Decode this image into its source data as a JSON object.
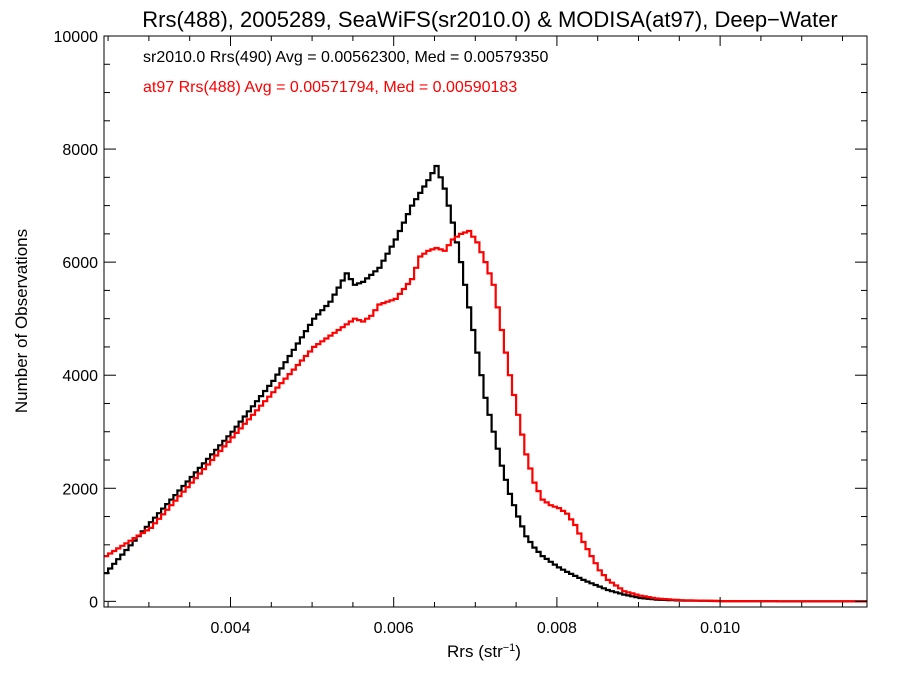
{
  "chart_data": {
    "type": "line",
    "title": "Rrs(488), 2005289, SeaWiFS(sr2010.0) & MODISA(at97), Deep−Water",
    "xlabel_main": "Rrs (str",
    "xlabel_sup": "−1",
    "xlabel_close": ")",
    "ylabel": "Number of Observations",
    "xlim": [
      0.00245,
      0.0118
    ],
    "ylim": [
      -100,
      10000
    ],
    "x_ticks": [
      0.004,
      0.006,
      0.008,
      0.01
    ],
    "x_tick_labels": [
      "0.004",
      "0.006",
      "0.008",
      "0.010"
    ],
    "y_ticks": [
      0,
      2000,
      4000,
      6000,
      8000,
      10000
    ],
    "y_tick_labels": [
      "0",
      "2000",
      "4000",
      "6000",
      "8000",
      "10000"
    ],
    "series": [
      {
        "name": "sr2010.0 Rrs(490)",
        "legend": "sr2010.0 Rrs(490) Avg = 0.00562300, Med = 0.00579350",
        "color": "#000000",
        "x": [
          0.00245,
          0.003,
          0.0035,
          0.004,
          0.0045,
          0.005,
          0.0052,
          0.0054,
          0.0055,
          0.0056,
          0.0058,
          0.006,
          0.0062,
          0.0064,
          0.0065,
          0.0066,
          0.0067,
          0.0068,
          0.0069,
          0.007,
          0.0071,
          0.0072,
          0.0073,
          0.0074,
          0.0075,
          0.0076,
          0.0077,
          0.0078,
          0.0079,
          0.008,
          0.0081,
          0.0082,
          0.0083,
          0.0084,
          0.0085,
          0.0086,
          0.0088,
          0.009,
          0.0092,
          0.0095,
          0.01,
          0.011,
          0.0118
        ],
        "y": [
          500,
          1400,
          2200,
          3000,
          3900,
          5000,
          5300,
          5800,
          5600,
          5650,
          5900,
          6400,
          7000,
          7450,
          7700,
          7300,
          6700,
          6000,
          5200,
          4400,
          3600,
          3000,
          2400,
          1900,
          1500,
          1150,
          950,
          800,
          700,
          600,
          520,
          450,
          380,
          320,
          260,
          200,
          120,
          60,
          30,
          15,
          5,
          0,
          0
        ]
      },
      {
        "name": "at97 Rrs(488)",
        "legend": "at97 Rrs(488) Avg = 0.00571794, Med = 0.00590183",
        "color": "#ff0000",
        "x": [
          0.00245,
          0.003,
          0.0035,
          0.004,
          0.0045,
          0.005,
          0.0053,
          0.0055,
          0.0056,
          0.0057,
          0.0058,
          0.006,
          0.0062,
          0.0063,
          0.0064,
          0.0065,
          0.0066,
          0.0067,
          0.0068,
          0.0069,
          0.007,
          0.0071,
          0.0072,
          0.0073,
          0.0074,
          0.0075,
          0.0076,
          0.0077,
          0.0078,
          0.0079,
          0.008,
          0.0081,
          0.0082,
          0.0083,
          0.0084,
          0.0085,
          0.0086,
          0.0088,
          0.009,
          0.0092,
          0.0095,
          0.01,
          0.011,
          0.0118
        ],
        "y": [
          800,
          1300,
          2100,
          2900,
          3700,
          4500,
          4800,
          5000,
          4950,
          5050,
          5250,
          5350,
          5700,
          6100,
          6200,
          6250,
          6200,
          6400,
          6500,
          6550,
          6350,
          6000,
          5600,
          4800,
          4000,
          3300,
          2600,
          2100,
          1800,
          1700,
          1650,
          1550,
          1350,
          1050,
          800,
          550,
          380,
          180,
          100,
          50,
          20,
          5,
          0,
          0
        ]
      }
    ],
    "grid": false,
    "legend_position": "top-left",
    "step_style": true
  }
}
